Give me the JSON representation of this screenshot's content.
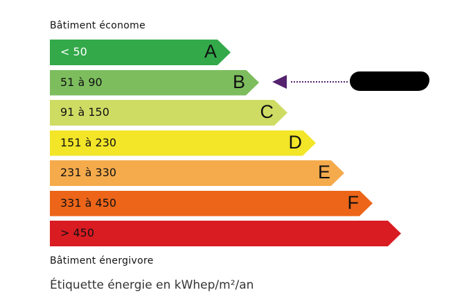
{
  "top_label": "Bâtiment économe",
  "bottom_label": "Bâtiment énergivore",
  "caption": "Étiquette énergie en kWhep/m²/an",
  "classes": [
    {
      "letter": "A",
      "range": "< 50",
      "color": "#33a94a",
      "text_color": "#ffffff"
    },
    {
      "letter": "B",
      "range": "51 à 90",
      "color": "#7dbd5e",
      "text_color": "#111111"
    },
    {
      "letter": "C",
      "range": "91 à 150",
      "color": "#cfdc64",
      "text_color": "#111111"
    },
    {
      "letter": "D",
      "range": "151 à 230",
      "color": "#f3e528",
      "text_color": "#111111"
    },
    {
      "letter": "E",
      "range": "231 à 330",
      "color": "#f5ab4c",
      "text_color": "#111111"
    },
    {
      "letter": "F",
      "range": "331 à 450",
      "color": "#ec6519",
      "text_color": "#111111"
    },
    {
      "letter": "",
      "range": "> 450",
      "color": "#d91c22",
      "text_color": "#111111"
    }
  ],
  "indicator": {
    "class": "B",
    "color": "#55226e",
    "label_redacted": true
  }
}
